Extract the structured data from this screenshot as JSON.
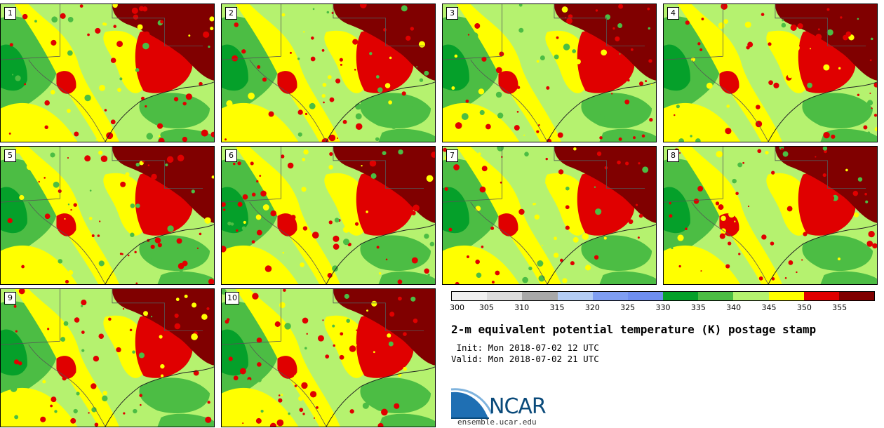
{
  "panels": [
    {
      "label": "1"
    },
    {
      "label": "2"
    },
    {
      "label": "3"
    },
    {
      "label": "4"
    },
    {
      "label": "5"
    },
    {
      "label": "6"
    },
    {
      "label": "7"
    },
    {
      "label": "8"
    },
    {
      "label": "9"
    },
    {
      "label": "10"
    }
  ],
  "colorbar": {
    "ticks": [
      "300",
      "305",
      "310",
      "315",
      "320",
      "325",
      "330",
      "335",
      "340",
      "345",
      "350",
      "355"
    ],
    "colors": [
      "#f0f0f0",
      "#dcdcdc",
      "#a8a8a8",
      "#b4cdf5",
      "#7f9ef2",
      "#6f8ff0",
      "#05a02a",
      "#4cbd44",
      "#b5f26f",
      "#ffff00",
      "#e00000",
      "#800000"
    ]
  },
  "title": "2-m equivalent potential temperature (K) postage stamp",
  "init": " Init: Mon 2018-07-02 12 UTC",
  "valid": "Valid: Mon 2018-07-02 21 UTC",
  "logo_text": "NCAR",
  "site": "ensemble.ucar.edu"
}
